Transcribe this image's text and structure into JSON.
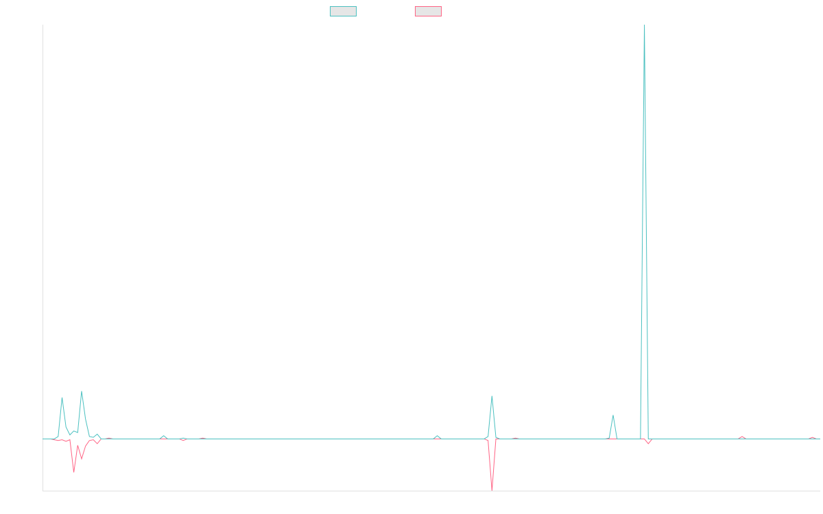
{
  "chart_data": {
    "type": "line",
    "title": "",
    "xlabel": "",
    "ylabel": "",
    "x_count": 200,
    "grid": false,
    "legend_position": "top-center",
    "series": [
      {
        "color": "#4bc0c0",
        "points": [
          [
            0,
            0
          ],
          [
            3,
            0
          ],
          [
            4,
            0.3
          ],
          [
            5,
            5.2
          ],
          [
            6,
            1.5
          ],
          [
            7,
            0.5
          ],
          [
            8,
            1.0
          ],
          [
            9,
            0.8
          ],
          [
            10,
            6.0
          ],
          [
            11,
            2.5
          ],
          [
            12,
            0.3
          ],
          [
            13,
            0.2
          ],
          [
            14,
            0.6
          ],
          [
            15,
            0
          ],
          [
            16,
            0
          ],
          [
            17,
            0
          ],
          [
            20,
            0
          ],
          [
            30,
            0
          ],
          [
            31,
            0.4
          ],
          [
            32,
            0
          ],
          [
            35,
            0
          ],
          [
            36,
            0.1
          ],
          [
            37,
            0
          ],
          [
            40,
            0
          ],
          [
            100,
            0
          ],
          [
            101,
            0.4
          ],
          [
            102,
            0
          ],
          [
            113,
            0
          ],
          [
            114,
            0.3
          ],
          [
            115,
            5.4
          ],
          [
            116,
            0.2
          ],
          [
            117,
            0
          ],
          [
            135,
            0
          ],
          [
            144,
            0
          ],
          [
            145,
            0.1
          ],
          [
            146,
            3.0
          ],
          [
            147,
            0
          ],
          [
            150,
            0
          ],
          [
            151,
            0
          ],
          [
            152,
            0
          ],
          [
            153,
            0
          ],
          [
            154,
            52
          ],
          [
            155,
            0
          ],
          [
            156,
            0
          ],
          [
            199,
            0
          ]
        ]
      },
      {
        "color": "#ff6384",
        "points": [
          [
            0,
            0
          ],
          [
            2,
            0
          ],
          [
            3,
            -0.1
          ],
          [
            4,
            -0.2
          ],
          [
            5,
            -0.1
          ],
          [
            6,
            -0.3
          ],
          [
            7,
            -0.1
          ],
          [
            8,
            -4.2
          ],
          [
            9,
            -0.8
          ],
          [
            10,
            -2.5
          ],
          [
            11,
            -0.9
          ],
          [
            12,
            -0.2
          ],
          [
            13,
            -0.1
          ],
          [
            14,
            -0.6
          ],
          [
            15,
            0
          ],
          [
            16,
            0
          ],
          [
            17,
            0.1
          ],
          [
            18,
            0
          ],
          [
            35,
            0
          ],
          [
            36,
            -0.2
          ],
          [
            37,
            0
          ],
          [
            40,
            0
          ],
          [
            41,
            0.1
          ],
          [
            42,
            0
          ],
          [
            113,
            0
          ],
          [
            114,
            -0.2
          ],
          [
            115,
            -6.5
          ],
          [
            116,
            0
          ],
          [
            120,
            0
          ],
          [
            121,
            0.1
          ],
          [
            122,
            0
          ],
          [
            150,
            0
          ],
          [
            151,
            0
          ],
          [
            152,
            0
          ],
          [
            153,
            0
          ],
          [
            154,
            0
          ],
          [
            155,
            -0.6
          ],
          [
            156,
            0
          ],
          [
            178,
            0
          ],
          [
            179,
            0.3
          ],
          [
            180,
            0
          ],
          [
            196,
            0
          ],
          [
            197,
            0.2
          ],
          [
            198,
            0
          ],
          [
            199,
            0
          ]
        ]
      }
    ],
    "ylim": [
      -6.5,
      52
    ]
  }
}
